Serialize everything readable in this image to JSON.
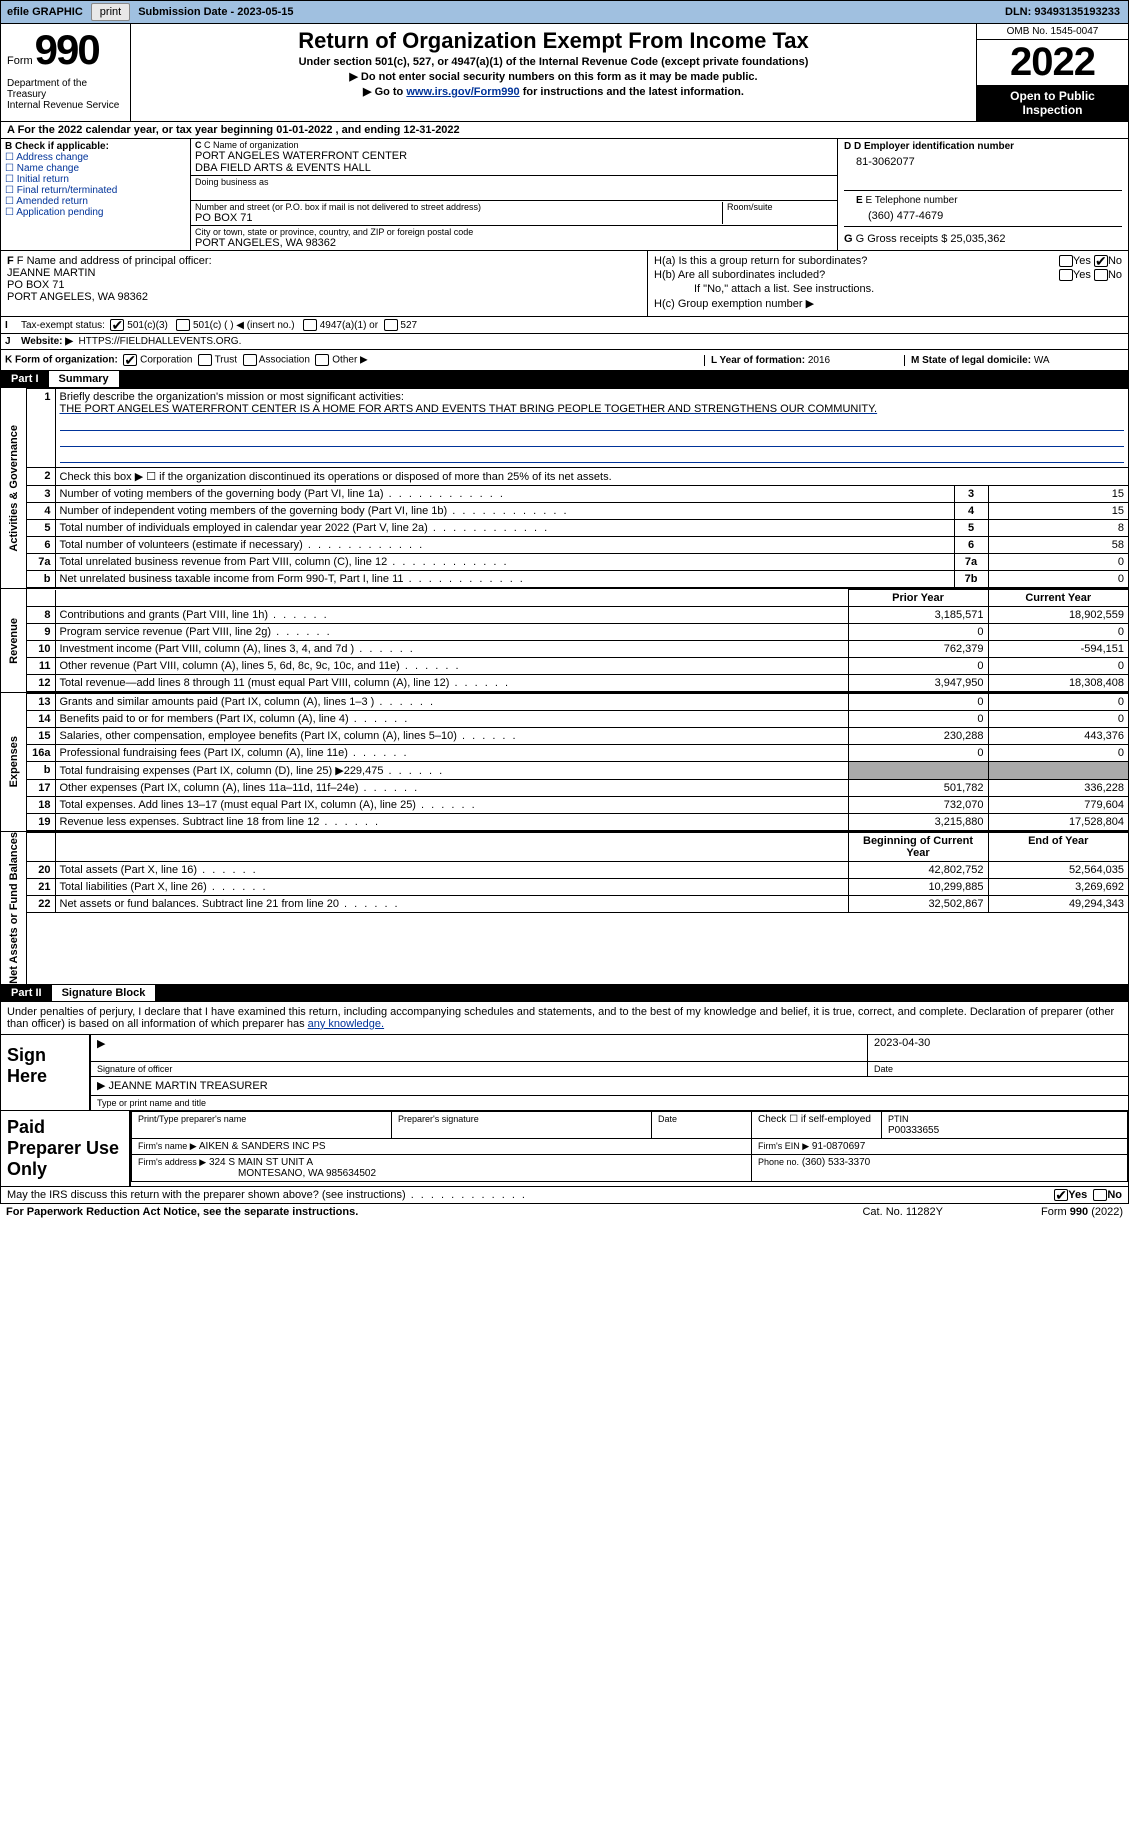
{
  "topbar": {
    "efile_label": "efile GRAPHIC",
    "print_btn": "print",
    "submission_label": "Submission Date - 2023-05-15",
    "dln_label": "DLN: 93493135193233"
  },
  "header": {
    "form_word": "Form",
    "form_num": "990",
    "dept": "Department of the Treasury\nInternal Revenue Service",
    "title": "Return of Organization Exempt From Income Tax",
    "sub1": "Under section 501(c), 527, or 4947(a)(1) of the Internal Revenue Code (except private foundations)",
    "sub2": "Do not enter social security numbers on this form as it may be made public.",
    "sub3_pre": "Go to ",
    "sub3_link": "www.irs.gov/Form990",
    "sub3_post": " for instructions and the latest information.",
    "omb": "OMB No. 1545-0047",
    "year": "2022",
    "open": "Open to Public Inspection"
  },
  "period": {
    "label_a": "A For the 2022 calendar year, or tax year beginning ",
    "begin": "01-01-2022",
    "mid": " , and ending ",
    "end": "12-31-2022"
  },
  "box_b": {
    "label": "B Check if applicable:",
    "opts": [
      "Address change",
      "Name change",
      "Initial return",
      "Final return/terminated",
      "Amended return",
      "Application pending"
    ]
  },
  "box_c": {
    "name_lbl": "C Name of organization",
    "name1": "PORT ANGELES WATERFRONT CENTER",
    "name2": "DBA FIELD ARTS & EVENTS HALL",
    "dba_lbl": "Doing business as",
    "street_lbl": "Number and street (or P.O. box if mail is not delivered to street address)",
    "room_lbl": "Room/suite",
    "street": "PO BOX 71",
    "city_lbl": "City or town, state or province, country, and ZIP or foreign postal code",
    "city": "PORT ANGELES, WA   98362"
  },
  "box_d": {
    "ein_lbl": "D Employer identification number",
    "ein": "81-3062077",
    "tel_lbl": "E Telephone number",
    "tel": "(360) 477-4679",
    "gross_lbl": "G Gross receipts $",
    "gross": "25,035,362"
  },
  "box_f": {
    "lbl": "F Name and address of principal officer:",
    "l1": "JEANNE MARTIN",
    "l2": "PO BOX 71",
    "l3": "PORT ANGELES, WA   98362"
  },
  "box_h": {
    "ha": "H(a)  Is this a group return for subordinates?",
    "hb": "H(b)  Are all subordinates included?",
    "hb_note": "If \"No,\" attach a list. See instructions.",
    "hc": "H(c)  Group exemption number ▶",
    "yes": "Yes",
    "no": "No"
  },
  "tax_exempt": {
    "lbl": "Tax-exempt status:",
    "o1": "501(c)(3)",
    "o2": "501(c) (   ) ◀ (insert no.)",
    "o3": "4947(a)(1) or",
    "o4": "527"
  },
  "website": {
    "lbl": "Website: ▶",
    "val": "HTTPS://FIELDHALLEVENTS.ORG."
  },
  "line_k": {
    "lbl": "K Form of organization:",
    "o1": "Corporation",
    "o2": "Trust",
    "o3": "Association",
    "o4": "Other ▶",
    "l_lbl": "L Year of formation: ",
    "l_val": "2016",
    "m_lbl": "M State of legal domicile: ",
    "m_val": "WA"
  },
  "part1": {
    "num": "Part I",
    "title": "Summary"
  },
  "mission": {
    "num": "1",
    "lbl": "Briefly describe the organization's mission or most significant activities:",
    "text": "THE PORT ANGELES WATERFRONT CENTER IS A HOME FOR ARTS AND EVENTS THAT BRING PEOPLE TOGETHER AND STRENGTHENS OUR COMMUNITY."
  },
  "line2": {
    "num": "2",
    "text": "Check this box ▶ ☐ if the organization discontinued its operations or disposed of more than 25% of its net assets."
  },
  "rows_gov": [
    {
      "n": "3",
      "d": "Number of voting members of the governing body (Part VI, line 1a)",
      "b": "3",
      "v": "15"
    },
    {
      "n": "4",
      "d": "Number of independent voting members of the governing body (Part VI, line 1b)",
      "b": "4",
      "v": "15"
    },
    {
      "n": "5",
      "d": "Total number of individuals employed in calendar year 2022 (Part V, line 2a)",
      "b": "5",
      "v": "8"
    },
    {
      "n": "6",
      "d": "Total number of volunteers (estimate if necessary)",
      "b": "6",
      "v": "58"
    },
    {
      "n": "7a",
      "d": "Total unrelated business revenue from Part VIII, column (C), line 12",
      "b": "7a",
      "v": "0"
    },
    {
      "n": "b",
      "d": "Net unrelated business taxable income from Form 990-T, Part I, line 11",
      "b": "7b",
      "v": "0"
    }
  ],
  "py_hdr": "Prior Year",
  "cy_hdr": "Current Year",
  "rows_rev": [
    {
      "n": "8",
      "d": "Contributions and grants (Part VIII, line 1h)",
      "p": "3,185,571",
      "c": "18,902,559"
    },
    {
      "n": "9",
      "d": "Program service revenue (Part VIII, line 2g)",
      "p": "0",
      "c": "0"
    },
    {
      "n": "10",
      "d": "Investment income (Part VIII, column (A), lines 3, 4, and 7d )",
      "p": "762,379",
      "c": "-594,151"
    },
    {
      "n": "11",
      "d": "Other revenue (Part VIII, column (A), lines 5, 6d, 8c, 9c, 10c, and 11e)",
      "p": "0",
      "c": "0"
    },
    {
      "n": "12",
      "d": "Total revenue—add lines 8 through 11 (must equal Part VIII, column (A), line 12)",
      "p": "3,947,950",
      "c": "18,308,408"
    }
  ],
  "rows_exp": [
    {
      "n": "13",
      "d": "Grants and similar amounts paid (Part IX, column (A), lines 1–3 )",
      "p": "0",
      "c": "0"
    },
    {
      "n": "14",
      "d": "Benefits paid to or for members (Part IX, column (A), line 4)",
      "p": "0",
      "c": "0"
    },
    {
      "n": "15",
      "d": "Salaries, other compensation, employee benefits (Part IX, column (A), lines 5–10)",
      "p": "230,288",
      "c": "443,376"
    },
    {
      "n": "16a",
      "d": "Professional fundraising fees (Part IX, column (A), line 11e)",
      "p": "0",
      "c": "0"
    },
    {
      "n": "b",
      "d": "Total fundraising expenses (Part IX, column (D), line 25) ▶229,475",
      "p": "",
      "c": "",
      "gray": true
    },
    {
      "n": "17",
      "d": "Other expenses (Part IX, column (A), lines 11a–11d, 11f–24e)",
      "p": "501,782",
      "c": "336,228"
    },
    {
      "n": "18",
      "d": "Total expenses. Add lines 13–17 (must equal Part IX, column (A), line 25)",
      "p": "732,070",
      "c": "779,604"
    },
    {
      "n": "19",
      "d": "Revenue less expenses. Subtract line 18 from line 12",
      "p": "3,215,880",
      "c": "17,528,804"
    }
  ],
  "bcy_hdr": "Beginning of Current Year",
  "eoy_hdr": "End of Year",
  "rows_net": [
    {
      "n": "20",
      "d": "Total assets (Part X, line 16)",
      "p": "42,802,752",
      "c": "52,564,035"
    },
    {
      "n": "21",
      "d": "Total liabilities (Part X, line 26)",
      "p": "10,299,885",
      "c": "3,269,692"
    },
    {
      "n": "22",
      "d": "Net assets or fund balances. Subtract line 21 from line 20",
      "p": "32,502,867",
      "c": "49,294,343"
    }
  ],
  "side": {
    "gov": "Activities & Governance",
    "rev": "Revenue",
    "exp": "Expenses",
    "net": "Net Assets or Fund Balances"
  },
  "part2": {
    "num": "Part II",
    "title": "Signature Block"
  },
  "sig": {
    "text_pre": "Under penalties of perjury, I declare that I have examined this return, including accompanying schedules and statements, and to the best of my knowledge and belief, it is true, correct, and complete. Declaration of preparer (other than officer) is based on all information of which preparer has ",
    "text_link": "any knowledge.",
    "here": "Sign Here",
    "sig_lbl": "Signature of officer",
    "date_lbl": "Date",
    "date": "2023-04-30",
    "name": "JEANNE MARTIN  TREASURER",
    "name_lbl": "Type or print name and title"
  },
  "paid": {
    "title": "Paid Preparer Use Only",
    "h1": "Print/Type preparer's name",
    "h2": "Preparer's signature",
    "h3": "Date",
    "h4_a": "Check ☐ if self-employed",
    "h5": "PTIN",
    "ptin": "P00333655",
    "firm_lbl": "Firm's name    ▶",
    "firm": "AIKEN & SANDERS INC PS",
    "ein_lbl": "Firm's EIN ▶",
    "ein": "91-0870697",
    "addr_lbl": "Firm's address ▶",
    "addr1": "324 S MAIN ST UNIT A",
    "addr2": "MONTESANO, WA   985634502",
    "phone_lbl": "Phone no.",
    "phone": "(360) 533-3370"
  },
  "discuss": {
    "text": "May the IRS discuss this return with the preparer shown above? (see instructions)",
    "yes": "Yes",
    "no": "No"
  },
  "footer": {
    "pra": "For Paperwork Reduction Act Notice, see the separate instructions.",
    "cat": "Cat. No. 11282Y",
    "form": "Form ",
    "form_b": "990",
    "form_y": " (2022)"
  },
  "colors": {
    "topbar_bg": "#a0c0e0",
    "link": "#003399",
    "black": "#000000",
    "gray_fill": "#aaaaaa",
    "btn_bg": "#e8e8e8"
  }
}
